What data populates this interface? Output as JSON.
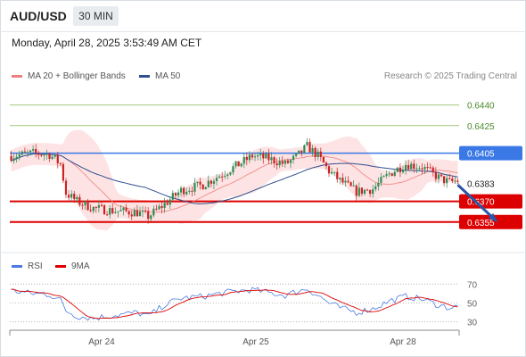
{
  "header": {
    "symbol": "AUD/USD",
    "timeframe": "30 MIN",
    "datetime": "Monday, April 28, 2025 3:53:49 AM CET"
  },
  "legend": {
    "ma20": "MA 20 + Bollinger Bands",
    "ma50": "MA 50",
    "credit": "Research © 2025 Trading Central",
    "rsi": "RSI",
    "rsi_ma": "9MA"
  },
  "colors": {
    "ma20": "#f08080",
    "ma50": "#2f4f8f",
    "rsi": "#4a7be0",
    "rsi_ma": "#dd0000",
    "up": "#2e8b57",
    "down": "#cc2222",
    "target_green": "#a4c97c",
    "pivot_blue": "#3a78e6",
    "support_red": "#dd0000",
    "band_fill": "#fde3e3"
  },
  "chart_data": [
    {
      "type": "candlestick",
      "y_range": [
        0.6338,
        0.6454
      ],
      "x_labels": [
        "Apr 24",
        "Apr 25",
        "Apr 28"
      ],
      "current_price": "0.6383",
      "levels": [
        {
          "label": "0.6440",
          "value": 0.644,
          "kind": "target"
        },
        {
          "label": "0.6425",
          "value": 0.6425,
          "kind": "target"
        },
        {
          "label": "0.6405",
          "value": 0.6405,
          "kind": "pivot"
        },
        {
          "label": "0.6370",
          "value": 0.637,
          "kind": "support"
        },
        {
          "label": "0.6355",
          "value": 0.6355,
          "kind": "support"
        }
      ],
      "close_path": [
        [
          0,
          0.6403
        ],
        [
          8,
          0.6405
        ],
        [
          14,
          0.6404
        ],
        [
          18,
          0.6397
        ],
        [
          20,
          0.6376
        ],
        [
          24,
          0.637
        ],
        [
          30,
          0.6365
        ],
        [
          38,
          0.6363
        ],
        [
          46,
          0.6362
        ],
        [
          50,
          0.6359
        ],
        [
          56,
          0.6368
        ],
        [
          62,
          0.6378
        ],
        [
          70,
          0.6382
        ],
        [
          78,
          0.6391
        ],
        [
          84,
          0.6398
        ],
        [
          88,
          0.6403
        ],
        [
          94,
          0.6401
        ],
        [
          100,
          0.6397
        ],
        [
          104,
          0.6402
        ],
        [
          108,
          0.641
        ],
        [
          112,
          0.6403
        ],
        [
          116,
          0.6392
        ],
        [
          120,
          0.6385
        ],
        [
          126,
          0.6377
        ],
        [
          132,
          0.6379
        ],
        [
          138,
          0.639
        ],
        [
          144,
          0.6397
        ],
        [
          150,
          0.6395
        ],
        [
          154,
          0.639
        ],
        [
          157,
          0.6386
        ],
        [
          160,
          0.6384
        ],
        [
          163,
          0.6385
        ]
      ],
      "forecast_arrow": {
        "from": [
          163,
          0.6382
        ],
        "to": [
          175,
          0.6356
        ]
      }
    },
    {
      "type": "line",
      "title": "RSI",
      "y_range": [
        25,
        75
      ],
      "y_ticks": [
        "70",
        "50",
        "30"
      ],
      "rsi_path": [
        [
          0,
          63
        ],
        [
          8,
          60
        ],
        [
          14,
          59
        ],
        [
          18,
          53
        ],
        [
          20,
          42
        ],
        [
          24,
          36
        ],
        [
          30,
          34
        ],
        [
          38,
          37
        ],
        [
          46,
          40
        ],
        [
          50,
          36
        ],
        [
          56,
          48
        ],
        [
          62,
          55
        ],
        [
          70,
          57
        ],
        [
          78,
          61
        ],
        [
          84,
          63
        ],
        [
          88,
          64
        ],
        [
          94,
          61
        ],
        [
          100,
          58
        ],
        [
          104,
          62
        ],
        [
          108,
          65
        ],
        [
          112,
          58
        ],
        [
          116,
          50
        ],
        [
          120,
          45
        ],
        [
          126,
          40
        ],
        [
          132,
          44
        ],
        [
          138,
          52
        ],
        [
          144,
          57
        ],
        [
          150,
          54
        ],
        [
          154,
          50
        ],
        [
          157,
          47
        ],
        [
          160,
          45
        ],
        [
          163,
          46
        ]
      ]
    }
  ]
}
